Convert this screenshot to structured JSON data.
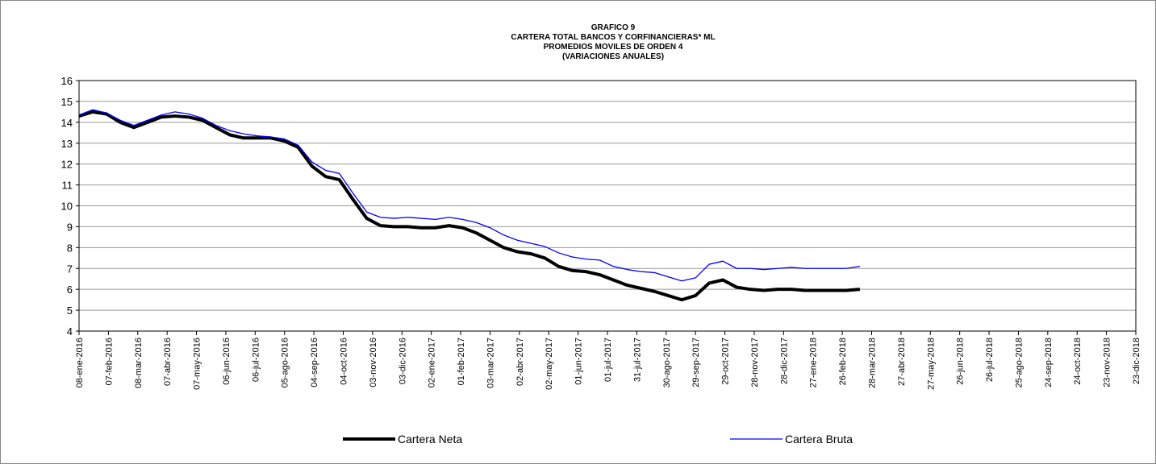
{
  "chart_data": {
    "type": "line",
    "title": [
      "GRAFICO 9",
      "CARTERA TOTAL  BANCOS Y CORFINANCIERAS* ML",
      "PROMEDIOS MOVILES DE ORDEN 4",
      "(VARIACIONES  ANUALES)"
    ],
    "x": [
      "2016-01-08",
      "2016-01-22",
      "2016-02-05",
      "2016-02-19",
      "2016-03-04",
      "2016-03-18",
      "2016-04-01",
      "2016-04-15",
      "2016-04-29",
      "2016-05-13",
      "2016-05-27",
      "2016-06-10",
      "2016-06-24",
      "2016-07-08",
      "2016-07-22",
      "2016-08-05",
      "2016-08-19",
      "2016-09-02",
      "2016-09-16",
      "2016-09-30",
      "2016-10-14",
      "2016-10-28",
      "2016-11-11",
      "2016-11-25",
      "2016-12-09",
      "2016-12-23",
      "2017-01-06",
      "2017-01-20",
      "2017-02-03",
      "2017-02-17",
      "2017-03-03",
      "2017-03-17",
      "2017-03-31",
      "2017-04-14",
      "2017-04-28",
      "2017-05-12",
      "2017-05-26",
      "2017-06-09",
      "2017-06-23",
      "2017-07-07",
      "2017-07-21",
      "2017-08-04",
      "2017-08-18",
      "2017-09-01",
      "2017-09-15",
      "2017-09-29",
      "2017-10-13",
      "2017-10-27",
      "2017-11-10",
      "2017-11-24",
      "2017-12-08",
      "2017-12-22",
      "2018-01-05",
      "2018-01-19",
      "2018-02-02",
      "2018-02-16",
      "2018-03-02",
      "2018-03-16"
    ],
    "series": [
      {
        "name": "Cartera Neta",
        "color": "#000000",
        "width": 4,
        "values": [
          14.3,
          14.5,
          14.4,
          14.0,
          13.75,
          14.0,
          14.25,
          14.3,
          14.25,
          14.1,
          13.75,
          13.4,
          13.25,
          13.25,
          13.25,
          13.1,
          12.8,
          11.9,
          11.4,
          11.25,
          10.3,
          9.4,
          9.05,
          9.0,
          9.0,
          8.95,
          8.95,
          9.05,
          8.95,
          8.7,
          8.35,
          8.0,
          7.8,
          7.7,
          7.5,
          7.1,
          6.9,
          6.85,
          6.7,
          6.45,
          6.2,
          6.05,
          5.9,
          5.7,
          5.5,
          5.7,
          6.3,
          6.45,
          6.1,
          6.0,
          5.95,
          6.0,
          6.0,
          5.95,
          5.95,
          5.95,
          5.95,
          6.0
        ]
      },
      {
        "name": "Cartera Bruta",
        "color": "#0000ff",
        "width": 1.3,
        "values": [
          14.35,
          14.6,
          14.45,
          14.1,
          13.85,
          14.1,
          14.35,
          14.5,
          14.4,
          14.2,
          13.85,
          13.6,
          13.45,
          13.35,
          13.3,
          13.2,
          12.9,
          12.1,
          11.7,
          11.55,
          10.6,
          9.7,
          9.45,
          9.4,
          9.45,
          9.4,
          9.35,
          9.45,
          9.35,
          9.2,
          8.95,
          8.6,
          8.35,
          8.2,
          8.05,
          7.75,
          7.55,
          7.45,
          7.4,
          7.1,
          6.95,
          6.85,
          6.8,
          6.6,
          6.4,
          6.55,
          7.2,
          7.35,
          7.0,
          7.0,
          6.95,
          7.0,
          7.05,
          7.0,
          7.0,
          7.0,
          7.0,
          7.1
        ]
      }
    ],
    "ylim": [
      4,
      16
    ],
    "yticks": [
      4,
      5,
      6,
      7,
      8,
      9,
      10,
      11,
      12,
      13,
      14,
      15,
      16
    ],
    "grid": true,
    "xlim": [
      "2016-01-08",
      "2018-12-23"
    ],
    "xticks": [
      {
        "value": "2016-01-08",
        "label": "08-ene-2016"
      },
      {
        "value": "2016-02-07",
        "label": "07-feb-2016"
      },
      {
        "value": "2016-03-08",
        "label": "08-mar-2016"
      },
      {
        "value": "2016-04-07",
        "label": "07-abr-2016"
      },
      {
        "value": "2016-05-07",
        "label": "07-may-2016"
      },
      {
        "value": "2016-06-06",
        "label": "06-jun-2016"
      },
      {
        "value": "2016-07-06",
        "label": "06-jul-2016"
      },
      {
        "value": "2016-08-05",
        "label": "05-ago-2016"
      },
      {
        "value": "2016-09-04",
        "label": "04-sep-2016"
      },
      {
        "value": "2016-10-04",
        "label": "04-oct-2016"
      },
      {
        "value": "2016-11-03",
        "label": "03-nov-2016"
      },
      {
        "value": "2016-12-03",
        "label": "03-dic-2016"
      },
      {
        "value": "2017-01-02",
        "label": "02-ene-2017"
      },
      {
        "value": "2017-02-01",
        "label": "01-feb-2017"
      },
      {
        "value": "2017-03-03",
        "label": "03-mar-2017"
      },
      {
        "value": "2017-04-02",
        "label": "02-abr-2017"
      },
      {
        "value": "2017-05-02",
        "label": "02-may-2017"
      },
      {
        "value": "2017-06-01",
        "label": "01-jun-2017"
      },
      {
        "value": "2017-07-01",
        "label": "01-jul-2017"
      },
      {
        "value": "2017-07-31",
        "label": "31-jul-2017"
      },
      {
        "value": "2017-08-30",
        "label": "30-ago-2017"
      },
      {
        "value": "2017-09-29",
        "label": "29-sep-2017"
      },
      {
        "value": "2017-10-29",
        "label": "29-oct-2017"
      },
      {
        "value": "2017-11-28",
        "label": "28-nov-2017"
      },
      {
        "value": "2017-12-28",
        "label": "28-dic-2017"
      },
      {
        "value": "2018-01-27",
        "label": "27-ene-2018"
      },
      {
        "value": "2018-02-26",
        "label": "26-feb-2018"
      },
      {
        "value": "2018-03-28",
        "label": "28-mar-2018"
      },
      {
        "value": "2018-04-27",
        "label": "27-abr-2018"
      },
      {
        "value": "2018-05-27",
        "label": "27-may-2018"
      },
      {
        "value": "2018-06-26",
        "label": "26-jun-2018"
      },
      {
        "value": "2018-07-26",
        "label": "26-jul-2018"
      },
      {
        "value": "2018-08-25",
        "label": "25-ago-2018"
      },
      {
        "value": "2018-09-24",
        "label": "24-sep-2018"
      },
      {
        "value": "2018-10-24",
        "label": "24-oct-2018"
      },
      {
        "value": "2018-11-23",
        "label": "23-nov-2018"
      },
      {
        "value": "2018-12-23",
        "label": "23-dic-2018"
      }
    ]
  }
}
